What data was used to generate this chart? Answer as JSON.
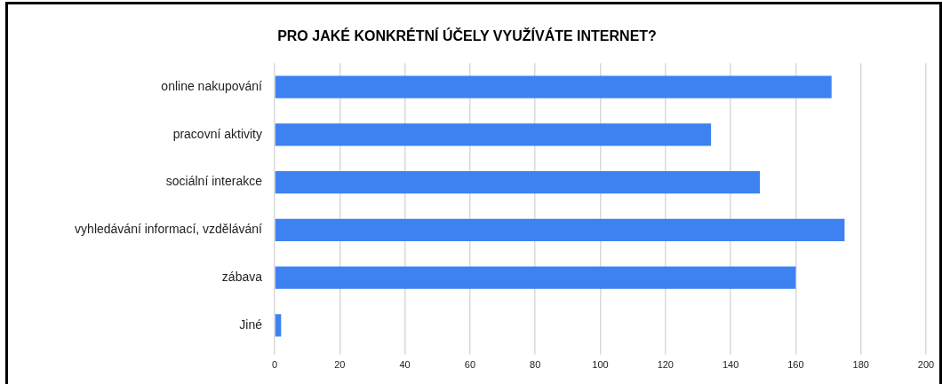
{
  "chart_data": {
    "type": "bar",
    "orientation": "horizontal",
    "title": "PRO JAKÉ KONKRÉTNÍ ÚČELY VYUŽÍVÁTE INTERNET?",
    "categories": [
      "online nakupování",
      "pracovní aktivity",
      "sociální interakce",
      "vyhledávání informací, vzdělávání",
      "zábava",
      "Jiné"
    ],
    "values": [
      171,
      134,
      149,
      175,
      160,
      2
    ],
    "color": "#3d82f0",
    "xlim": [
      0,
      200
    ],
    "xticks": [
      0,
      20,
      40,
      60,
      80,
      100,
      120,
      140,
      160,
      180,
      200
    ],
    "grid": "x"
  }
}
